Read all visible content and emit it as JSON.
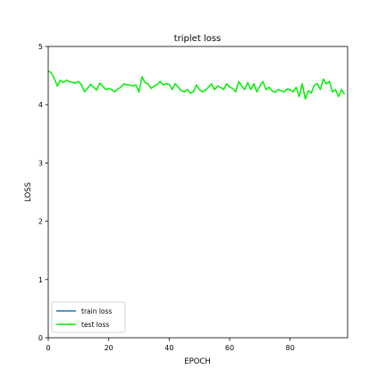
{
  "chart_data": {
    "type": "line",
    "title": "triplet loss",
    "xlabel": "EPOCH",
    "ylabel": "LOSS",
    "xlim": [
      0,
      99
    ],
    "ylim": [
      0,
      5
    ],
    "x_ticks": [
      0,
      20,
      40,
      60,
      80
    ],
    "y_ticks": [
      0,
      1,
      2,
      3,
      4,
      5
    ],
    "grid": false,
    "legend_position": "lower-left",
    "series": [
      {
        "name": "train loss",
        "color": "#1f77b4",
        "values": []
      },
      {
        "name": "test loss",
        "color": "#00ee00",
        "values": [
          4.58,
          4.55,
          4.45,
          4.32,
          4.42,
          4.38,
          4.42,
          4.4,
          4.38,
          4.37,
          4.4,
          4.34,
          4.22,
          4.28,
          4.35,
          4.3,
          4.25,
          4.37,
          4.32,
          4.26,
          4.28,
          4.26,
          4.22,
          4.27,
          4.3,
          4.36,
          4.34,
          4.34,
          4.32,
          4.34,
          4.22,
          4.48,
          4.38,
          4.36,
          4.28,
          4.32,
          4.34,
          4.4,
          4.34,
          4.36,
          4.35,
          4.26,
          4.36,
          4.3,
          4.24,
          4.22,
          4.26,
          4.2,
          4.22,
          4.34,
          4.26,
          4.22,
          4.25,
          4.3,
          4.36,
          4.26,
          4.32,
          4.3,
          4.26,
          4.36,
          4.3,
          4.28,
          4.22,
          4.4,
          4.32,
          4.26,
          4.38,
          4.26,
          4.36,
          4.22,
          4.32,
          4.4,
          4.26,
          4.3,
          4.24,
          4.21,
          4.26,
          4.24,
          4.22,
          4.27,
          4.26,
          4.22,
          4.3,
          4.14,
          4.36,
          4.1,
          4.24,
          4.2,
          4.34,
          4.36,
          4.26,
          4.44,
          4.36,
          4.4,
          4.22,
          4.26,
          4.14,
          4.26,
          4.18
        ]
      }
    ]
  }
}
